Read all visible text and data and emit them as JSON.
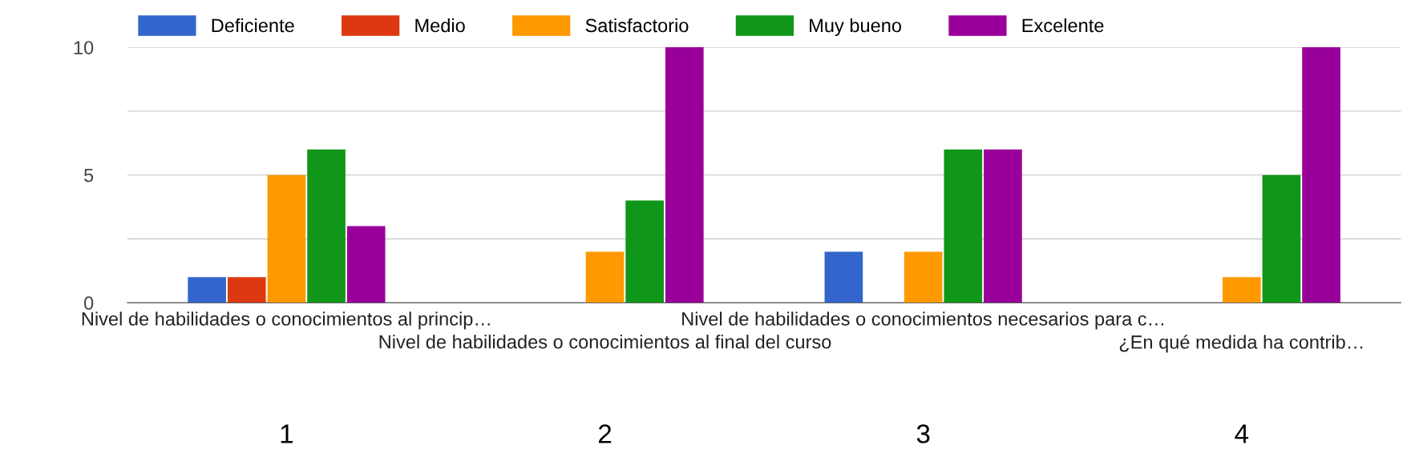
{
  "chart_data": {
    "type": "bar",
    "categories": [
      "Nivel de habilidades o conocimientos al princip…",
      "Nivel de habilidades o conocimientos al final del curso",
      "Nivel de habilidades o conocimientos necesarios para c…",
      "¿En qué medida ha contrib…"
    ],
    "series": [
      {
        "name": "Deficiente",
        "color": "#3366cc",
        "values": [
          1,
          0,
          2,
          0
        ]
      },
      {
        "name": "Medio",
        "color": "#dc3912",
        "values": [
          1,
          0,
          0,
          0
        ]
      },
      {
        "name": "Satisfactorio",
        "color": "#ff9900",
        "values": [
          5,
          2,
          2,
          1
        ]
      },
      {
        "name": "Muy bueno",
        "color": "#109618",
        "values": [
          6,
          4,
          6,
          5
        ]
      },
      {
        "name": "Excelente",
        "color": "#990099",
        "values": [
          3,
          10,
          6,
          10
        ]
      }
    ],
    "ylim": [
      0,
      10
    ],
    "yticks": [
      0,
      {
        "value": 2.5,
        "label": null
      },
      5,
      {
        "value": 7.5,
        "label": null
      },
      10
    ],
    "grid": "y",
    "legend": "top left",
    "annotations": [
      "1",
      "2",
      "3",
      "4"
    ]
  }
}
